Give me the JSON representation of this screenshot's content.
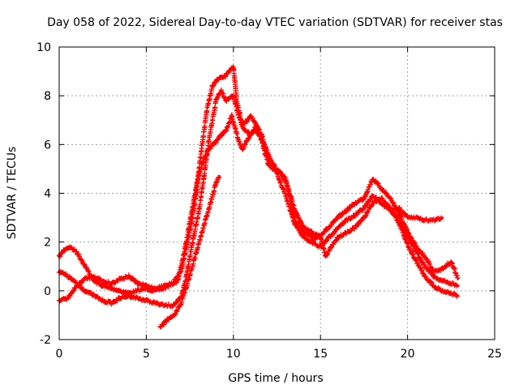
{
  "chart_data": {
    "type": "scatter",
    "title": "Day 058 of 2022, Sidereal Day-to-day VTEC variation (SDTVAR) for receiver stas",
    "xlabel": "GPS time / hours",
    "ylabel": "SDTVAR / TECUs",
    "xlim": [
      0,
      25
    ],
    "ylim": [
      -2,
      10
    ],
    "xticks": [
      "0",
      "5",
      "10",
      "15",
      "20",
      "25"
    ],
    "yticks": [
      "-2",
      "0",
      "2",
      "4",
      "6",
      "8",
      "10"
    ],
    "grid": true,
    "marker": "+",
    "color": "#ff0000",
    "series": [
      {
        "name": "track-a",
        "x": [
          0,
          0.3,
          0.6,
          1.0,
          1.5,
          2.0,
          2.5,
          3.0,
          3.5,
          4.0,
          4.5,
          5.0,
          5.5,
          6.0,
          6.5,
          7.0,
          7.3,
          7.6,
          7.9,
          8.2,
          8.5,
          8.8,
          9.0,
          9.2,
          9.5,
          9.8,
          10.0,
          10.2,
          10.5,
          10.8,
          11.0,
          11.3,
          11.6,
          12.0,
          12.3,
          12.6,
          13.0,
          13.3,
          13.6,
          14.0,
          14.3,
          14.6,
          15.0,
          15.5,
          16.0,
          16.5,
          17.0,
          17.5,
          18.0,
          18.5,
          19.0,
          19.5,
          20.0,
          20.5,
          21.0,
          21.5,
          22.0,
          22.5,
          22.9
        ],
        "y": [
          1.4,
          1.7,
          1.8,
          1.6,
          1.0,
          0.4,
          0.2,
          0.1,
          0.0,
          -0.1,
          0.0,
          0.1,
          0.0,
          0.1,
          0.3,
          0.8,
          1.8,
          2.8,
          4.2,
          6.0,
          7.5,
          8.4,
          8.6,
          8.7,
          8.8,
          9.0,
          9.2,
          7.8,
          6.8,
          7.0,
          7.2,
          6.8,
          6.2,
          5.2,
          5.0,
          4.9,
          4.6,
          3.6,
          2.8,
          2.4,
          2.3,
          2.1,
          2.3,
          2.6,
          3.0,
          3.3,
          3.6,
          3.8,
          4.6,
          4.2,
          3.8,
          3.2,
          2.4,
          1.8,
          1.4,
          0.8,
          0.9,
          1.2,
          0.5
        ]
      },
      {
        "name": "track-b",
        "x": [
          0,
          0.5,
          1.0,
          1.5,
          2.0,
          2.5,
          3.0,
          3.5,
          4.0,
          4.5,
          5.0,
          5.5,
          6.0,
          6.5,
          7.0,
          7.3,
          7.6,
          8.0,
          8.3,
          8.6,
          9.0,
          9.3,
          9.6,
          10.0,
          10.3,
          10.6,
          11.0,
          11.3,
          11.6,
          12.0,
          12.5,
          13.0,
          13.5,
          14.0,
          14.5,
          15.0,
          15.5,
          16.0,
          16.5,
          17.0,
          17.5,
          18.0,
          18.5,
          19.0,
          19.5,
          20.0,
          20.5,
          21.0,
          21.5,
          22.0,
          22.5,
          22.9
        ],
        "y": [
          0.8,
          0.6,
          0.3,
          0.0,
          -0.2,
          -0.4,
          -0.5,
          -0.3,
          -0.2,
          -0.3,
          -0.4,
          -0.5,
          -0.6,
          -0.6,
          -0.3,
          0.6,
          1.8,
          3.2,
          4.6,
          6.2,
          7.8,
          8.2,
          7.8,
          8.0,
          7.2,
          6.6,
          6.4,
          6.8,
          6.4,
          5.6,
          4.8,
          3.9,
          2.8,
          2.2,
          2.0,
          1.8,
          2.2,
          2.6,
          2.9,
          3.1,
          3.4,
          3.9,
          3.6,
          3.3,
          3.0,
          2.2,
          1.6,
          1.0,
          0.6,
          0.4,
          0.3,
          0.2
        ]
      },
      {
        "name": "track-c",
        "x": [
          0,
          0.5,
          1.0,
          1.5,
          2.0,
          2.5,
          3.0,
          3.5,
          4.0,
          4.5,
          5.0,
          5.5,
          6.0,
          6.5,
          6.8,
          7.0,
          7.3,
          7.6,
          7.9,
          8.2,
          8.5,
          8.8,
          9.0,
          9.3,
          9.6,
          9.9,
          10.2,
          10.5,
          10.8,
          11.2,
          11.6,
          12.0,
          12.5,
          13.0,
          13.5,
          14.0,
          14.5,
          15.0,
          15.3,
          15.6,
          16.0,
          16.5,
          17.0,
          17.5,
          18.0,
          18.5,
          19.0,
          19.5,
          20.0,
          20.5,
          21.0,
          21.5,
          22.0,
          22.5,
          22.9
        ],
        "y": [
          -0.4,
          -0.3,
          0.2,
          0.5,
          0.6,
          0.4,
          0.3,
          0.5,
          0.6,
          0.3,
          0.2,
          0.1,
          0.2,
          0.3,
          0.4,
          1.0,
          2.0,
          3.2,
          4.4,
          5.2,
          5.7,
          6.0,
          6.1,
          6.4,
          6.6,
          7.2,
          6.4,
          5.8,
          6.2,
          6.6,
          6.3,
          5.4,
          5.0,
          4.5,
          3.4,
          2.6,
          2.4,
          2.2,
          1.4,
          1.8,
          2.2,
          2.4,
          2.6,
          3.0,
          3.6,
          3.8,
          3.4,
          2.8,
          1.9,
          1.2,
          0.6,
          0.2,
          0.0,
          -0.1,
          -0.2
        ]
      },
      {
        "name": "track-d",
        "x": [
          5.8,
          6.2,
          6.6,
          7.0,
          7.4,
          7.8,
          8.2,
          8.6,
          9.0,
          9.2
        ],
        "y": [
          -1.5,
          -1.2,
          -1.0,
          -0.5,
          0.4,
          1.4,
          2.4,
          3.4,
          4.4,
          4.7
        ]
      },
      {
        "name": "track-e",
        "x": [
          19.0,
          19.5,
          20.0,
          20.5,
          21.0,
          21.5,
          22.0
        ],
        "y": [
          3.3,
          3.4,
          3.0,
          3.0,
          2.9,
          2.9,
          3.0
        ]
      }
    ]
  }
}
